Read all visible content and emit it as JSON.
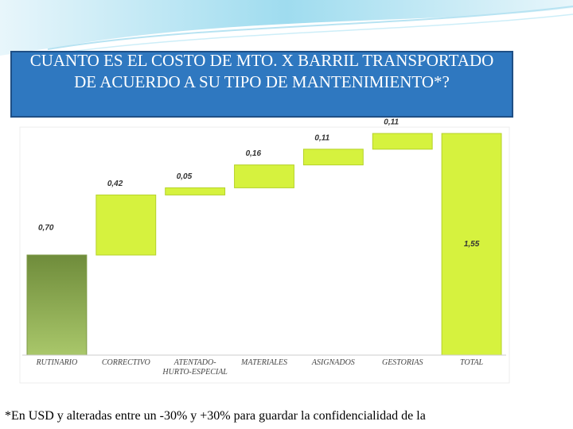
{
  "chart_data": {
    "type": "waterfall",
    "title": "CUANTO ES EL COSTO DE MTO. X BARRIL TRANSPORTADO DE ACUERDO A SU TIPO DE MANTENIMIENTO*?",
    "categories": [
      "RUTINARIO",
      "CORRECTIVO",
      "ATENTADO-HURTO-ESPECIAL",
      "MATERIALES",
      "ASIGNADOS",
      "GESTORIAS",
      "TOTAL"
    ],
    "values": [
      0.7,
      0.42,
      0.05,
      0.16,
      0.11,
      0.11,
      1.55
    ],
    "value_labels": [
      "0,70",
      "0,42",
      "0,05",
      "0,16",
      "0,11",
      "0,11",
      "1,55"
    ],
    "color": "#d6f23e",
    "first_color": "#8fae4f",
    "footnote": "*En USD y alteradas entre un -30% y +30% para guardar la confidencialidad de la"
  }
}
